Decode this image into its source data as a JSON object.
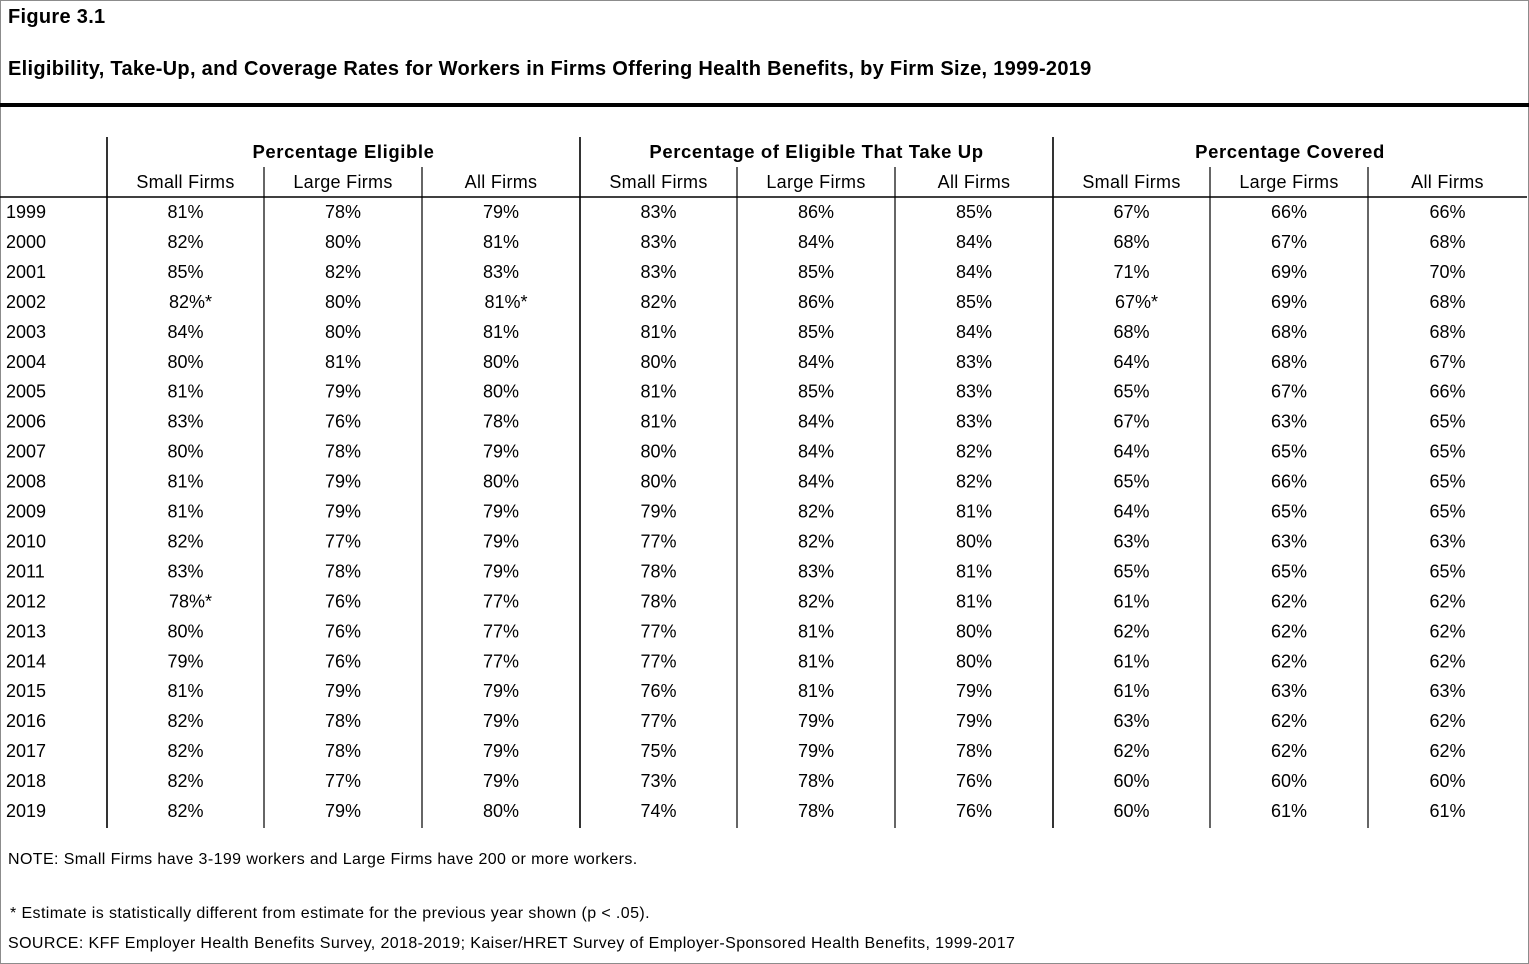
{
  "header": {
    "figure_label": "Figure 3.1",
    "title": "Eligibility, Take-Up, and Coverage Rates for Workers in Firms Offering Health Benefits, by Firm Size, 1999-2019"
  },
  "chart_data": {
    "type": "table",
    "groups": [
      {
        "label": "Percentage Eligible",
        "columns": [
          "Small Firms",
          "Large Firms",
          "All Firms"
        ]
      },
      {
        "label": "Percentage of Eligible That Take Up",
        "columns": [
          "Small Firms",
          "Large Firms",
          "All Firms"
        ]
      },
      {
        "label": "Percentage Covered",
        "columns": [
          "Small Firms",
          "Large Firms",
          "All Firms"
        ]
      }
    ],
    "rows": [
      {
        "year": "1999",
        "values": [
          "81%",
          "78%",
          "79%",
          "83%",
          "86%",
          "85%",
          "67%",
          "66%",
          "66%"
        ]
      },
      {
        "year": "2000",
        "values": [
          "82%",
          "80%",
          "81%",
          "83%",
          "84%",
          "84%",
          "68%",
          "67%",
          "68%"
        ]
      },
      {
        "year": "2001",
        "values": [
          "85%",
          "82%",
          "83%",
          "83%",
          "85%",
          "84%",
          "71%",
          "69%",
          "70%"
        ]
      },
      {
        "year": "2002",
        "values": [
          "82%*",
          "80%",
          "81%*",
          "82%",
          "86%",
          "85%",
          "67%*",
          "69%",
          "68%"
        ]
      },
      {
        "year": "2003",
        "values": [
          "84%",
          "80%",
          "81%",
          "81%",
          "85%",
          "84%",
          "68%",
          "68%",
          "68%"
        ]
      },
      {
        "year": "2004",
        "values": [
          "80%",
          "81%",
          "80%",
          "80%",
          "84%",
          "83%",
          "64%",
          "68%",
          "67%"
        ]
      },
      {
        "year": "2005",
        "values": [
          "81%",
          "79%",
          "80%",
          "81%",
          "85%",
          "83%",
          "65%",
          "67%",
          "66%"
        ]
      },
      {
        "year": "2006",
        "values": [
          "83%",
          "76%",
          "78%",
          "81%",
          "84%",
          "83%",
          "67%",
          "63%",
          "65%"
        ]
      },
      {
        "year": "2007",
        "values": [
          "80%",
          "78%",
          "79%",
          "80%",
          "84%",
          "82%",
          "64%",
          "65%",
          "65%"
        ]
      },
      {
        "year": "2008",
        "values": [
          "81%",
          "79%",
          "80%",
          "80%",
          "84%",
          "82%",
          "65%",
          "66%",
          "65%"
        ]
      },
      {
        "year": "2009",
        "values": [
          "81%",
          "79%",
          "79%",
          "79%",
          "82%",
          "81%",
          "64%",
          "65%",
          "65%"
        ]
      },
      {
        "year": "2010",
        "values": [
          "82%",
          "77%",
          "79%",
          "77%",
          "82%",
          "80%",
          "63%",
          "63%",
          "63%"
        ]
      },
      {
        "year": "2011",
        "values": [
          "83%",
          "78%",
          "79%",
          "78%",
          "83%",
          "81%",
          "65%",
          "65%",
          "65%"
        ]
      },
      {
        "year": "2012",
        "values": [
          "78%*",
          "76%",
          "77%",
          "78%",
          "82%",
          "81%",
          "61%",
          "62%",
          "62%"
        ]
      },
      {
        "year": "2013",
        "values": [
          "80%",
          "76%",
          "77%",
          "77%",
          "81%",
          "80%",
          "62%",
          "62%",
          "62%"
        ]
      },
      {
        "year": "2014",
        "values": [
          "79%",
          "76%",
          "77%",
          "77%",
          "81%",
          "80%",
          "61%",
          "62%",
          "62%"
        ]
      },
      {
        "year": "2015",
        "values": [
          "81%",
          "79%",
          "79%",
          "76%",
          "81%",
          "79%",
          "61%",
          "63%",
          "63%"
        ]
      },
      {
        "year": "2016",
        "values": [
          "82%",
          "78%",
          "79%",
          "77%",
          "79%",
          "79%",
          "63%",
          "62%",
          "62%"
        ]
      },
      {
        "year": "2017",
        "values": [
          "82%",
          "78%",
          "79%",
          "75%",
          "79%",
          "78%",
          "62%",
          "62%",
          "62%"
        ]
      },
      {
        "year": "2018",
        "values": [
          "82%",
          "77%",
          "79%",
          "73%",
          "78%",
          "76%",
          "60%",
          "60%",
          "60%"
        ]
      },
      {
        "year": "2019",
        "values": [
          "82%",
          "79%",
          "80%",
          "74%",
          "78%",
          "76%",
          "60%",
          "61%",
          "61%"
        ]
      }
    ]
  },
  "notes": {
    "note": "NOTE: Small Firms have 3-199 workers and Large Firms have 200 or more workers.",
    "significance": "* Estimate is statistically different from estimate for the previous year shown (p < .05).",
    "source": "SOURCE: KFF Employer Health Benefits Survey, 2018-2019; Kaiser/HRET Survey of Employer-Sponsored Health Benefits, 1999-2017"
  }
}
